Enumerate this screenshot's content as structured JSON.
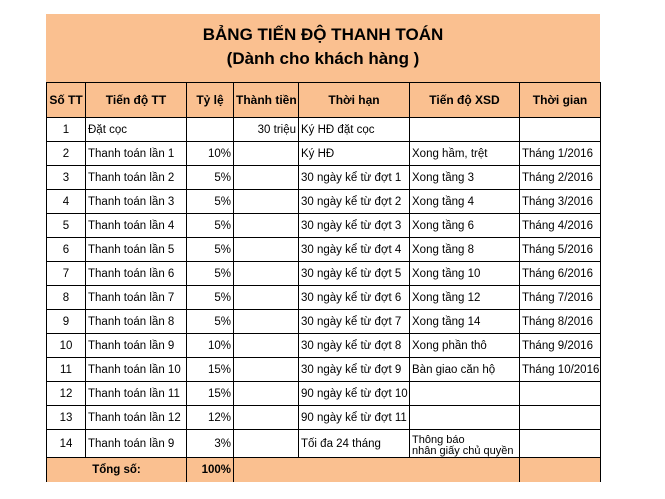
{
  "title": {
    "line1": "BẢNG TIẾN ĐỘ THANH TOÁN",
    "line2": "(Dành cho khách hàng )"
  },
  "headers": [
    "Số TT",
    "Tiến độ TT",
    "Tỷ lệ",
    "Thành tiền",
    "Thời hạn",
    "Tiến độ XSD",
    "Thời gian"
  ],
  "rows": [
    [
      "1",
      "Đặt cọc",
      "",
      "30 triệu",
      "Ký HĐ đặt cọc",
      "",
      ""
    ],
    [
      "2",
      "Thanh toán lần 1",
      "10%",
      "",
      "Ký HĐ",
      "Xong hầm, trệt",
      "Tháng 1/2016"
    ],
    [
      "3",
      "Thanh toán lần 2",
      "5%",
      "",
      "30 ngày kể từ đợt 1",
      "Xong tầng 3",
      "Tháng 2/2016"
    ],
    [
      "4",
      "Thanh toán lần 3",
      "5%",
      "",
      "30 ngày kể từ đợt 2",
      "Xong tầng 4",
      "Tháng 3/2016"
    ],
    [
      "5",
      "Thanh toán lần 4",
      "5%",
      "",
      "30 ngày kể từ đợt 3",
      "Xong tầng 6",
      "Tháng 4/2016"
    ],
    [
      "6",
      "Thanh toán lần 5",
      "5%",
      "",
      "30 ngày kể từ đợt 4",
      "Xong tầng 8",
      "Tháng 5/2016"
    ],
    [
      "7",
      "Thanh toán lần 6",
      "5%",
      "",
      "30 ngày kể từ đợt 5",
      "Xong tầng 10",
      "Tháng 6/2016"
    ],
    [
      "8",
      "Thanh toán lần 7",
      "5%",
      "",
      "30 ngày kể từ đợt 6",
      "Xong tầng 12",
      "Tháng 7/2016"
    ],
    [
      "9",
      "Thanh toán lần 8",
      "5%",
      "",
      "30 ngày kể từ đợt 7",
      "Xong tầng 14",
      "Tháng 8/2016"
    ],
    [
      "10",
      "Thanh toán lần 9",
      "10%",
      "",
      "30 ngày kể từ đợt 8",
      "Xong phần thô",
      "Tháng 9/2016"
    ],
    [
      "11",
      "Thanh toán lần 10",
      "15%",
      "",
      "30 ngày kể từ đợt 9",
      "Bàn giao căn hộ",
      "Tháng 10/2016"
    ],
    [
      "12",
      "Thanh toán lần 11",
      "15%",
      "",
      "90 ngày kể từ đợt 10",
      "",
      ""
    ],
    [
      "13",
      "Thanh toán lần 12",
      "12%",
      "",
      "90 ngày kể từ đợt 11",
      "",
      ""
    ],
    [
      "14",
      "Thanh toán lần 9",
      "3%",
      "",
      "Tối đa 24 tháng",
      "Thông báo\nnhân giấy chủ quyền",
      ""
    ]
  ],
  "total": {
    "label": "Tổng số:",
    "value": "100%"
  }
}
